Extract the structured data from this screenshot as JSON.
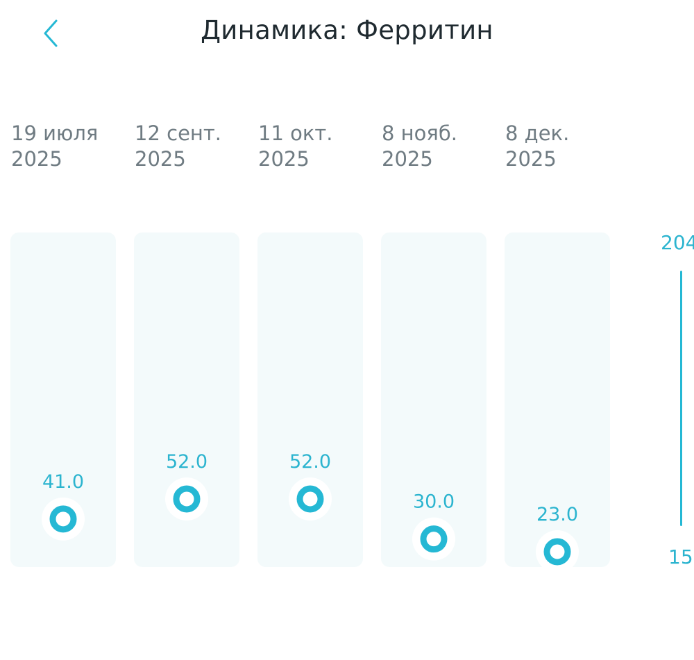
{
  "header": {
    "title": "Динамика: Ферритин",
    "back_icon": "chevron-left-icon"
  },
  "colors": {
    "accent": "#25b8d4",
    "column_bg": "#f3fafb",
    "title": "#1f2a30",
    "date_text": "#6f7b82"
  },
  "chart_data": {
    "type": "scatter",
    "categories": [
      [
        "19 июля",
        "2025"
      ],
      [
        "12 сент.",
        "2025"
      ],
      [
        "11 окт.",
        "2025"
      ],
      [
        "8 нояб.",
        "2025"
      ],
      [
        "8 дек.",
        "2025"
      ]
    ],
    "values": [
      41.0,
      52.0,
      52.0,
      30.0,
      23.0
    ],
    "value_labels": [
      "41.0",
      "52.0",
      "52.0",
      "30.0",
      "23.0"
    ],
    "ylim": [
      15,
      204
    ],
    "y_axis_labels": {
      "top": "204",
      "bottom": "15"
    },
    "grid": false
  }
}
